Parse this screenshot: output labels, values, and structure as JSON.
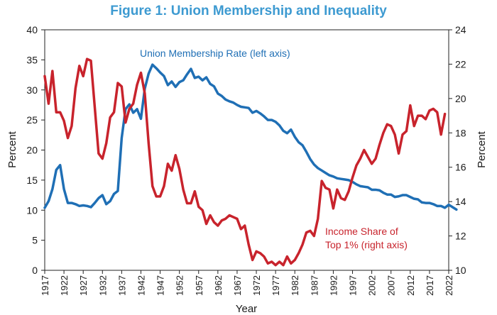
{
  "chart_data": {
    "type": "line",
    "title": "Figure 1: Union Membership and Inequality",
    "title_color": "#3d9ad1",
    "xlabel": "Year",
    "ylabel_left": "Percent",
    "ylabel_right": "Percent",
    "xlim": [
      1917,
      2022
    ],
    "ylim_left": [
      0,
      40
    ],
    "ylim_right": [
      10,
      24
    ],
    "yticks_left": [
      "0",
      "5",
      "10",
      "15",
      "20",
      "25",
      "30",
      "35",
      "40"
    ],
    "yticks_right": [
      "10",
      "12",
      "14",
      "16",
      "18",
      "20",
      "22",
      "24"
    ],
    "xticks": [
      "1917",
      "1922",
      "1927",
      "1932",
      "1937",
      "1942",
      "1947",
      "1952",
      "1957",
      "1962",
      "1967",
      "1972",
      "1977",
      "1982",
      "1987",
      "1992",
      "1997",
      "2002",
      "2007",
      "2012",
      "2017",
      "2022"
    ],
    "legend": "inline annotations",
    "grid": false,
    "series": [
      {
        "name": "Union Membership Rate",
        "label_lines": [
          "Union Membership Rate (left axis)"
        ],
        "axis": "left",
        "color": "#1f6fb5",
        "points": [
          [
            1917,
            10.4
          ],
          [
            1918,
            11.5
          ],
          [
            1919,
            13.5
          ],
          [
            1920,
            16.7
          ],
          [
            1921,
            17.5
          ],
          [
            1922,
            13.5
          ],
          [
            1923,
            11.2
          ],
          [
            1924,
            11.2
          ],
          [
            1925,
            11.0
          ],
          [
            1926,
            10.7
          ],
          [
            1927,
            10.8
          ],
          [
            1928,
            10.7
          ],
          [
            1929,
            10.5
          ],
          [
            1930,
            11.2
          ],
          [
            1931,
            12.0
          ],
          [
            1932,
            12.5
          ],
          [
            1933,
            11.0
          ],
          [
            1934,
            11.5
          ],
          [
            1935,
            12.7
          ],
          [
            1936,
            13.2
          ],
          [
            1937,
            22.0
          ],
          [
            1938,
            26.8
          ],
          [
            1939,
            27.6
          ],
          [
            1940,
            26.2
          ],
          [
            1941,
            26.8
          ],
          [
            1942,
            25.2
          ],
          [
            1943,
            30.2
          ],
          [
            1944,
            32.7
          ],
          [
            1945,
            34.2
          ],
          [
            1946,
            33.6
          ],
          [
            1947,
            32.9
          ],
          [
            1948,
            32.3
          ],
          [
            1949,
            30.8
          ],
          [
            1950,
            31.4
          ],
          [
            1951,
            30.5
          ],
          [
            1952,
            31.3
          ],
          [
            1953,
            31.6
          ],
          [
            1954,
            32.6
          ],
          [
            1955,
            33.5
          ],
          [
            1956,
            32.0
          ],
          [
            1957,
            32.2
          ],
          [
            1958,
            31.6
          ],
          [
            1959,
            32.1
          ],
          [
            1960,
            31.0
          ],
          [
            1961,
            30.6
          ],
          [
            1962,
            29.4
          ],
          [
            1963,
            29.0
          ],
          [
            1964,
            28.4
          ],
          [
            1965,
            28.1
          ],
          [
            1966,
            27.9
          ],
          [
            1967,
            27.5
          ],
          [
            1968,
            27.2
          ],
          [
            1969,
            27.1
          ],
          [
            1970,
            27.0
          ],
          [
            1971,
            26.2
          ],
          [
            1972,
            26.5
          ],
          [
            1973,
            26.1
          ],
          [
            1974,
            25.6
          ],
          [
            1975,
            25.0
          ],
          [
            1976,
            25.0
          ],
          [
            1977,
            24.7
          ],
          [
            1978,
            24.1
          ],
          [
            1979,
            23.2
          ],
          [
            1980,
            22.8
          ],
          [
            1981,
            23.4
          ],
          [
            1982,
            22.2
          ],
          [
            1983,
            21.3
          ],
          [
            1984,
            20.8
          ],
          [
            1985,
            19.7
          ],
          [
            1986,
            18.5
          ],
          [
            1987,
            17.6
          ],
          [
            1988,
            17.0
          ],
          [
            1989,
            16.6
          ],
          [
            1990,
            16.2
          ],
          [
            1991,
            15.8
          ],
          [
            1992,
            15.6
          ],
          [
            1993,
            15.3
          ],
          [
            1994,
            15.2
          ],
          [
            1995,
            15.1
          ],
          [
            1996,
            15.0
          ],
          [
            1997,
            14.7
          ],
          [
            1998,
            14.3
          ],
          [
            1999,
            14.0
          ],
          [
            2000,
            13.9
          ],
          [
            2001,
            13.8
          ],
          [
            2002,
            13.4
          ],
          [
            2003,
            13.4
          ],
          [
            2004,
            13.3
          ],
          [
            2005,
            12.9
          ],
          [
            2006,
            12.6
          ],
          [
            2007,
            12.6
          ],
          [
            2008,
            12.2
          ],
          [
            2009,
            12.3
          ],
          [
            2010,
            12.5
          ],
          [
            2011,
            12.5
          ],
          [
            2012,
            12.2
          ],
          [
            2013,
            11.9
          ],
          [
            2014,
            11.8
          ],
          [
            2015,
            11.3
          ],
          [
            2016,
            11.2
          ],
          [
            2017,
            11.2
          ],
          [
            2018,
            11.0
          ],
          [
            2019,
            10.7
          ],
          [
            2020,
            10.7
          ],
          [
            2021,
            10.4
          ],
          [
            2022,
            10.9
          ],
          [
            2023,
            10.5
          ],
          [
            2024,
            10.1
          ]
        ]
      },
      {
        "name": "Income Share of Top 1%",
        "label_lines": [
          "Income Share of",
          "Top 1% (right axis)"
        ],
        "axis": "right",
        "color": "#c8232c",
        "points": [
          [
            1917,
            21.3
          ],
          [
            1918,
            19.7
          ],
          [
            1919,
            21.6
          ],
          [
            1920,
            19.2
          ],
          [
            1921,
            19.2
          ],
          [
            1922,
            18.7
          ],
          [
            1923,
            17.7
          ],
          [
            1924,
            18.4
          ],
          [
            1925,
            20.6
          ],
          [
            1926,
            21.9
          ],
          [
            1927,
            21.3
          ],
          [
            1928,
            22.3
          ],
          [
            1929,
            22.2
          ],
          [
            1930,
            19.5
          ],
          [
            1931,
            16.8
          ],
          [
            1932,
            16.5
          ],
          [
            1933,
            17.4
          ],
          [
            1934,
            18.9
          ],
          [
            1935,
            19.2
          ],
          [
            1936,
            20.9
          ],
          [
            1937,
            20.7
          ],
          [
            1938,
            18.6
          ],
          [
            1939,
            19.4
          ],
          [
            1940,
            19.7
          ],
          [
            1941,
            20.8
          ],
          [
            1942,
            21.5
          ],
          [
            1943,
            20.3
          ],
          [
            1944,
            17.4
          ],
          [
            1945,
            14.9
          ],
          [
            1946,
            14.3
          ],
          [
            1947,
            14.3
          ],
          [
            1948,
            14.9
          ],
          [
            1949,
            16.2
          ],
          [
            1950,
            15.8
          ],
          [
            1951,
            16.7
          ],
          [
            1952,
            15.9
          ],
          [
            1953,
            14.7
          ],
          [
            1954,
            13.9
          ],
          [
            1955,
            13.9
          ],
          [
            1956,
            14.6
          ],
          [
            1957,
            13.7
          ],
          [
            1958,
            13.5
          ],
          [
            1959,
            12.7
          ],
          [
            1960,
            13.2
          ],
          [
            1961,
            12.8
          ],
          [
            1962,
            12.6
          ],
          [
            1963,
            12.9
          ],
          [
            1964,
            13.0
          ],
          [
            1965,
            13.2
          ],
          [
            1966,
            13.1
          ],
          [
            1967,
            13.0
          ],
          [
            1968,
            12.4
          ],
          [
            1969,
            12.6
          ],
          [
            1970,
            11.5
          ],
          [
            1971,
            10.6
          ],
          [
            1972,
            11.1
          ],
          [
            1973,
            11.0
          ],
          [
            1974,
            10.8
          ],
          [
            1975,
            10.4
          ],
          [
            1976,
            10.5
          ],
          [
            1977,
            10.3
          ],
          [
            1978,
            10.5
          ],
          [
            1979,
            10.3
          ],
          [
            1980,
            10.8
          ],
          [
            1981,
            10.4
          ],
          [
            1982,
            10.6
          ],
          [
            1983,
            11.0
          ],
          [
            1984,
            11.5
          ],
          [
            1985,
            12.2
          ],
          [
            1986,
            12.3
          ],
          [
            1987,
            12.0
          ],
          [
            1988,
            13.0
          ],
          [
            1989,
            15.2
          ],
          [
            1990,
            14.8
          ],
          [
            1991,
            14.7
          ],
          [
            1992,
            13.6
          ],
          [
            1993,
            14.7
          ],
          [
            1994,
            14.2
          ],
          [
            1995,
            14.1
          ],
          [
            1996,
            14.6
          ],
          [
            1997,
            15.4
          ],
          [
            1998,
            16.1
          ],
          [
            1999,
            16.5
          ],
          [
            2000,
            17.0
          ],
          [
            2001,
            16.6
          ],
          [
            2002,
            16.2
          ],
          [
            2003,
            16.5
          ],
          [
            2004,
            17.3
          ],
          [
            2005,
            18.0
          ],
          [
            2006,
            18.5
          ],
          [
            2007,
            18.4
          ],
          [
            2008,
            17.9
          ],
          [
            2009,
            16.8
          ],
          [
            2010,
            17.9
          ],
          [
            2011,
            18.1
          ],
          [
            2012,
            19.6
          ],
          [
            2013,
            18.4
          ],
          [
            2014,
            19.0
          ],
          [
            2015,
            19.0
          ],
          [
            2016,
            18.8
          ],
          [
            2017,
            19.3
          ],
          [
            2018,
            19.4
          ],
          [
            2019,
            19.2
          ],
          [
            2020,
            17.9
          ],
          [
            2021,
            19.1
          ]
        ]
      }
    ]
  }
}
